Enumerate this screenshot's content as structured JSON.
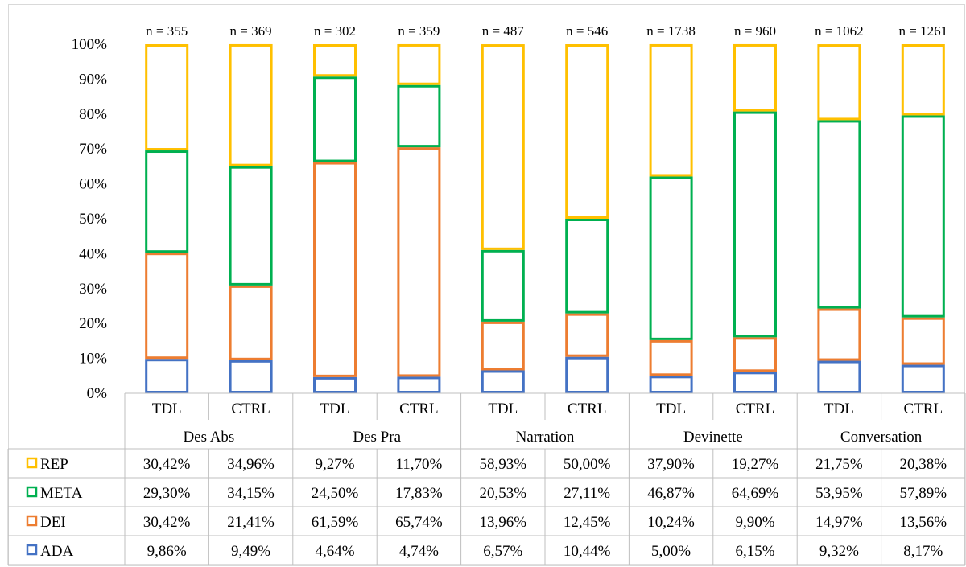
{
  "chart_data": {
    "type": "bar",
    "stacked": true,
    "percent_stacked": true,
    "groups": [
      {
        "label": "Des Abs",
        "categories": [
          "TDL",
          "CTRL"
        ],
        "n_labels": [
          "n = 355",
          "n = 369"
        ]
      },
      {
        "label": "Des Pra",
        "categories": [
          "TDL",
          "CTRL"
        ],
        "n_labels": [
          "n = 302",
          "n = 359"
        ]
      },
      {
        "label": "Narration",
        "categories": [
          "TDL",
          "CTRL"
        ],
        "n_labels": [
          "n = 487",
          "n = 546"
        ]
      },
      {
        "label": "Devinette",
        "categories": [
          "TDL",
          "CTRL"
        ],
        "n_labels": [
          "n = 1738",
          "n = 960"
        ]
      },
      {
        "label": "Conversation",
        "categories": [
          "TDL",
          "CTRL"
        ],
        "n_labels": [
          "n = 1062",
          "n = 1261"
        ]
      }
    ],
    "series": [
      {
        "name": "ADA",
        "color": "#4472c4",
        "values": [
          9.86,
          9.49,
          4.64,
          4.74,
          6.57,
          10.44,
          5.0,
          6.15,
          9.32,
          8.17
        ],
        "labels": [
          "9,86%",
          "9,49%",
          "4,64%",
          "4,74%",
          "6,57%",
          "10,44%",
          "5,00%",
          "6,15%",
          "9,32%",
          "8,17%"
        ]
      },
      {
        "name": "DEI",
        "color": "#ed7d31",
        "values": [
          30.42,
          21.41,
          61.59,
          65.74,
          13.96,
          12.45,
          10.24,
          9.9,
          14.97,
          13.56
        ],
        "labels": [
          "30,42%",
          "21,41%",
          "61,59%",
          "65,74%",
          "13,96%",
          "12,45%",
          "10,24%",
          "9,90%",
          "14,97%",
          "13,56%"
        ]
      },
      {
        "name": "META",
        "color": "#00b050",
        "values": [
          29.3,
          34.15,
          24.5,
          17.83,
          20.53,
          27.11,
          46.87,
          64.69,
          53.95,
          57.89
        ],
        "labels": [
          "29,30%",
          "34,15%",
          "24,50%",
          "17,83%",
          "20,53%",
          "27,11%",
          "46,87%",
          "64,69%",
          "53,95%",
          "57,89%"
        ]
      },
      {
        "name": "REP",
        "color": "#ffc000",
        "values": [
          30.42,
          34.96,
          9.27,
          11.7,
          58.93,
          50.0,
          37.9,
          19.27,
          21.75,
          20.38
        ],
        "labels": [
          "30,42%",
          "34,96%",
          "9,27%",
          "11,70%",
          "58,93%",
          "50,00%",
          "37,90%",
          "19,27%",
          "21,75%",
          "20,38%"
        ]
      }
    ],
    "y_ticks": [
      "0%",
      "10%",
      "20%",
      "30%",
      "40%",
      "50%",
      "60%",
      "70%",
      "80%",
      "90%",
      "100%"
    ],
    "ylim": [
      0,
      100
    ],
    "table_row_order": [
      "REP",
      "META",
      "DEI",
      "ADA"
    ],
    "bar_fill": "none",
    "legend_position": "data-table",
    "grid": false
  }
}
